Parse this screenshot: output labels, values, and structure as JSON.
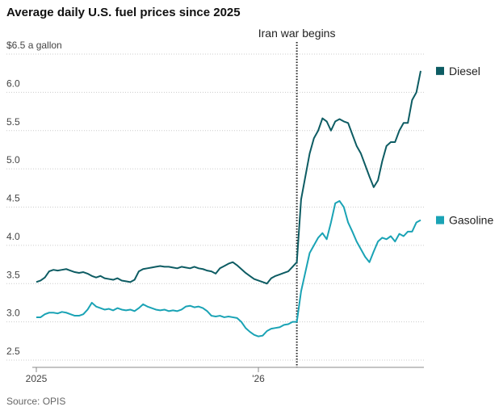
{
  "chart_data": {
    "type": "line",
    "title": "Average daily U.S. fuel prices since 2025",
    "source": "Source: OPIS",
    "categories": [
      "2025",
      null,
      null,
      null,
      null,
      null,
      null,
      null,
      null,
      null,
      null,
      null,
      null,
      null,
      null,
      null,
      null,
      null,
      null,
      null,
      null,
      null,
      null,
      null,
      null,
      null,
      null,
      null,
      null,
      null,
      null,
      null,
      null,
      null,
      null,
      null,
      null,
      null,
      null,
      null,
      null,
      null,
      null,
      null,
      null,
      null,
      null,
      null,
      null,
      null,
      null,
      null,
      "'26",
      null,
      null,
      null,
      null,
      null,
      null,
      null,
      null,
      null,
      null,
      null,
      null,
      null,
      null,
      null,
      null,
      null,
      null,
      null,
      null,
      null,
      null,
      null,
      null,
      null,
      null,
      null,
      null,
      null,
      null,
      null,
      null,
      null,
      null,
      null,
      null,
      null,
      null
    ],
    "series": [
      {
        "name": "Diesel",
        "color": "#0d5c63",
        "values": [
          3.52,
          3.54,
          3.58,
          3.66,
          3.68,
          3.67,
          3.68,
          3.69,
          3.67,
          3.65,
          3.64,
          3.65,
          3.63,
          3.6,
          3.58,
          3.6,
          3.57,
          3.56,
          3.55,
          3.57,
          3.54,
          3.53,
          3.52,
          3.55,
          3.66,
          3.69,
          3.7,
          3.71,
          3.72,
          3.73,
          3.72,
          3.72,
          3.71,
          3.7,
          3.72,
          3.71,
          3.7,
          3.72,
          3.7,
          3.69,
          3.67,
          3.66,
          3.63,
          3.7,
          3.73,
          3.76,
          3.78,
          3.74,
          3.69,
          3.64,
          3.6,
          3.56,
          3.54,
          3.52,
          3.5,
          3.57,
          3.6,
          3.62,
          3.64,
          3.66,
          3.72,
          3.78,
          4.6,
          4.9,
          5.2,
          5.4,
          5.5,
          5.66,
          5.62,
          5.5,
          5.62,
          5.65,
          5.62,
          5.6,
          5.45,
          5.3,
          5.2,
          5.05,
          4.9,
          4.76,
          4.85,
          5.1,
          5.3,
          5.35,
          5.35,
          5.5,
          5.6,
          5.6,
          5.9,
          6.0,
          6.28
        ]
      },
      {
        "name": "Gasoline",
        "color": "#1aa3b5",
        "values": [
          3.06,
          3.06,
          3.1,
          3.12,
          3.12,
          3.11,
          3.13,
          3.12,
          3.1,
          3.08,
          3.08,
          3.1,
          3.16,
          3.25,
          3.2,
          3.18,
          3.16,
          3.17,
          3.15,
          3.18,
          3.16,
          3.15,
          3.16,
          3.14,
          3.18,
          3.23,
          3.2,
          3.18,
          3.16,
          3.15,
          3.16,
          3.14,
          3.15,
          3.14,
          3.16,
          3.2,
          3.21,
          3.19,
          3.2,
          3.18,
          3.14,
          3.08,
          3.07,
          3.08,
          3.06,
          3.07,
          3.06,
          3.05,
          3.0,
          2.92,
          2.87,
          2.83,
          2.81,
          2.82,
          2.88,
          2.91,
          2.92,
          2.93,
          2.96,
          2.97,
          3.0,
          3.0,
          3.4,
          3.65,
          3.9,
          4.0,
          4.1,
          4.16,
          4.08,
          4.3,
          4.55,
          4.58,
          4.5,
          4.3,
          4.18,
          4.05,
          3.95,
          3.85,
          3.78,
          3.92,
          4.05,
          4.1,
          4.08,
          4.12,
          4.05,
          4.15,
          4.12,
          4.18,
          4.18,
          4.3,
          4.33
        ]
      }
    ],
    "annotation": {
      "text": "Iran war begins",
      "category_index": 61
    },
    "ylim": [
      2.5,
      6.5
    ],
    "yticks": [
      2.5,
      {
        "value": 3,
        "label": "3.0"
      },
      3.5,
      {
        "value": 4,
        "label": "4.0"
      },
      4.5,
      {
        "value": 5,
        "label": "5.0"
      },
      5.5,
      {
        "value": 6,
        "label": "6.0"
      },
      {
        "value": 6.5,
        "label": "$6.5 a gallon"
      }
    ],
    "grid": true
  }
}
